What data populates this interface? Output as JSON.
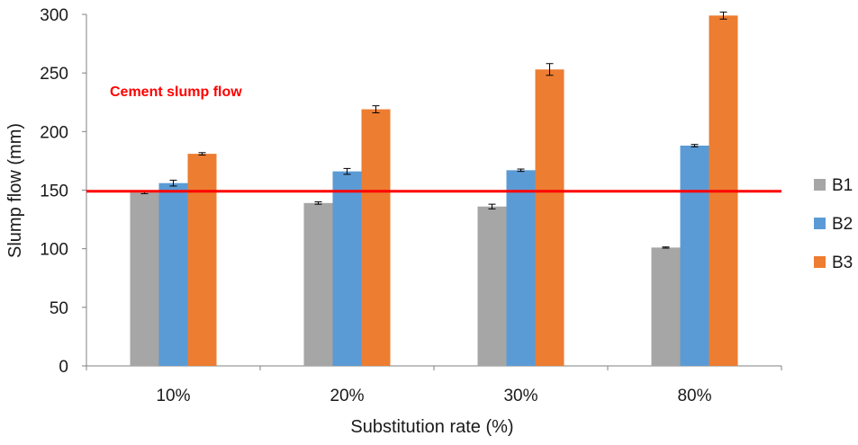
{
  "chart_data": {
    "type": "bar",
    "title": "",
    "xlabel": "Substitution rate (%)",
    "ylabel": "Slump flow (mm)",
    "categories": [
      "10%",
      "20%",
      "30%",
      "80%"
    ],
    "ylim": [
      0,
      300
    ],
    "yticks": [
      0,
      50,
      100,
      150,
      200,
      250,
      300
    ],
    "grid": false,
    "legend_position": "right",
    "series": [
      {
        "name": "B1",
        "color": "#a6a6a6",
        "values": [
          148,
          139,
          136,
          101
        ],
        "errors": [
          1,
          1,
          2,
          0.5
        ]
      },
      {
        "name": "B2",
        "color": "#5b9bd5",
        "values": [
          156,
          166,
          167,
          188
        ],
        "errors": [
          2.5,
          2.5,
          1,
          1
        ]
      },
      {
        "name": "B3",
        "color": "#ed7d31",
        "values": [
          181,
          219,
          253,
          299
        ],
        "errors": [
          1,
          3,
          5,
          3
        ]
      }
    ],
    "reference_line": {
      "label": "Cement slump flow",
      "value": 149,
      "color": "#ff0000"
    }
  }
}
